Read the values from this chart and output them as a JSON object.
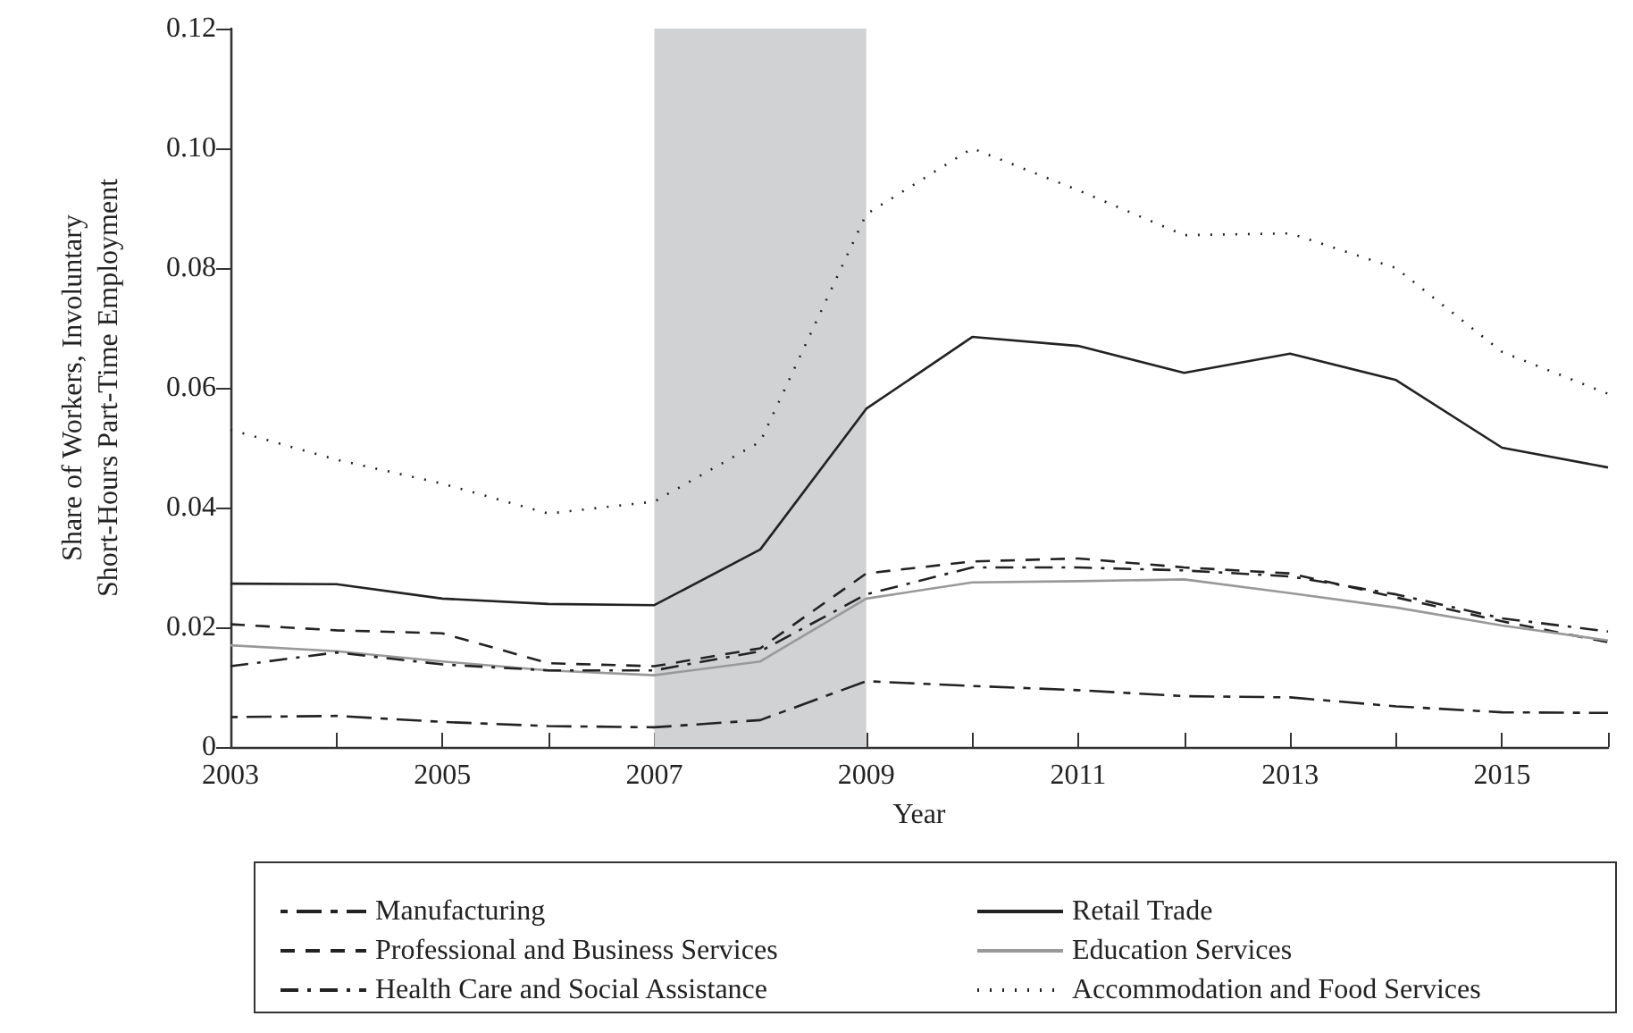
{
  "chart_data": {
    "type": "line",
    "xlabel": "Year",
    "ylabel": "Share of Workers, Involuntary Short-Hours Part-Time Employment",
    "x": [
      2003,
      2004,
      2005,
      2006,
      2007,
      2008,
      2009,
      2010,
      2011,
      2012,
      2013,
      2014,
      2015,
      2016
    ],
    "series": [
      {
        "name": "Manufacturing",
        "color": "#222222",
        "line_style": "longdash",
        "values": [
          0.005,
          0.0052,
          0.0042,
          0.0035,
          0.0033,
          0.0045,
          0.011,
          0.0102,
          0.0095,
          0.0085,
          0.0083,
          0.0068,
          0.0058,
          0.0057
        ]
      },
      {
        "name": "Retail Trade",
        "color": "#222222",
        "line_style": "solid",
        "values": [
          0.0273,
          0.0272,
          0.0248,
          0.0239,
          0.0237,
          0.033,
          0.0565,
          0.0685,
          0.067,
          0.0625,
          0.0657,
          0.0613,
          0.05,
          0.0467
        ]
      },
      {
        "name": "Professional and Business Services",
        "color": "#222222",
        "line_style": "dashed",
        "values": [
          0.0205,
          0.0195,
          0.019,
          0.014,
          0.0135,
          0.0165,
          0.029,
          0.031,
          0.0315,
          0.03,
          0.029,
          0.025,
          0.021,
          0.0175
        ]
      },
      {
        "name": "Education Services",
        "color": "#999999",
        "line_style": "solid",
        "values": [
          0.017,
          0.016,
          0.0143,
          0.0128,
          0.012,
          0.0143,
          0.0248,
          0.0275,
          0.0277,
          0.028,
          0.0257,
          0.0233,
          0.0203,
          0.0178
        ]
      },
      {
        "name": "Health Care and Social Assistance",
        "color": "#222222",
        "line_style": "dashdot",
        "values": [
          0.0135,
          0.0158,
          0.0138,
          0.0128,
          0.0128,
          0.016,
          0.0255,
          0.03,
          0.03,
          0.0295,
          0.0285,
          0.0255,
          0.0215,
          0.0193
        ]
      },
      {
        "name": "Accommodation and Food Services",
        "color": "#222222",
        "line_style": "dotted",
        "values": [
          0.053,
          0.048,
          0.044,
          0.039,
          0.041,
          0.051,
          0.089,
          0.1,
          0.093,
          0.0855,
          0.0858,
          0.08,
          0.066,
          0.059
        ]
      }
    ],
    "xlim": [
      2003,
      2016
    ],
    "xticks": [
      2003,
      {
        "value": 2004,
        "label": null
      },
      2005,
      {
        "value": 2006,
        "label": null
      },
      2007,
      {
        "value": 2008,
        "label": null
      },
      2009,
      {
        "value": 2010,
        "label": null
      },
      2011,
      {
        "value": 2012,
        "label": null
      },
      2013,
      {
        "value": 2014,
        "label": null
      },
      2015,
      {
        "value": 2016,
        "label": null
      }
    ],
    "ylim": [
      0,
      0.12
    ],
    "yticks": [
      0,
      0.02,
      0.04,
      0.06,
      0.08,
      {
        "value": 0.1,
        "label": "0.10"
      },
      0.12
    ],
    "bands": [
      {
        "axis": "x",
        "from": 2007,
        "to": 2009,
        "color": "#d1d2d4"
      }
    ],
    "grid": false,
    "legend": "bottom",
    "marker": "none"
  }
}
